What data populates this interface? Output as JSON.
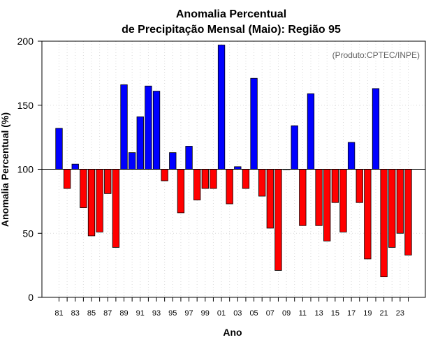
{
  "chart_data": {
    "type": "bar",
    "title": [
      "Anomalia Percentual",
      "de Precipitação Mensal (Maio): Região 95"
    ],
    "credit": "(Produto:CPTEC/INPE)",
    "xlabel": "Ano",
    "ylabel": "Anomalia Percentual (%)",
    "ylim": [
      0,
      200
    ],
    "yticks": [
      0,
      50,
      100,
      150,
      200
    ],
    "baseline": 100,
    "grid": true,
    "colors": {
      "above": "#0000ff",
      "below": "#ff0000",
      "outline": "#000000",
      "grid": "#d9d9d9"
    },
    "categories": [
      "81",
      "82",
      "83",
      "84",
      "85",
      "86",
      "87",
      "88",
      "89",
      "90",
      "91",
      "92",
      "93",
      "94",
      "95",
      "96",
      "97",
      "98",
      "99",
      "00",
      "01",
      "02",
      "03",
      "04",
      "05",
      "06",
      "07",
      "08",
      "09",
      "10",
      "11",
      "12",
      "13",
      "14",
      "15",
      "16",
      "17",
      "18",
      "19",
      "20",
      "21",
      "22",
      "23",
      "24"
    ],
    "xtick_labels": [
      "81",
      "83",
      "85",
      "87",
      "89",
      "91",
      "93",
      "95",
      "97",
      "99",
      "01",
      "03",
      "05",
      "07",
      "09",
      "11",
      "13",
      "15",
      "17",
      "19",
      "21",
      "23"
    ],
    "values": [
      132,
      85,
      104,
      70,
      48,
      51,
      81,
      39,
      166,
      113,
      141,
      165,
      161,
      91,
      113,
      66,
      118,
      76,
      85,
      85,
      197,
      73,
      102,
      85,
      171,
      79,
      54,
      21,
      100,
      134,
      56,
      159,
      56,
      44,
      74,
      51,
      121,
      74,
      30,
      163,
      16,
      39,
      50,
      33
    ]
  }
}
